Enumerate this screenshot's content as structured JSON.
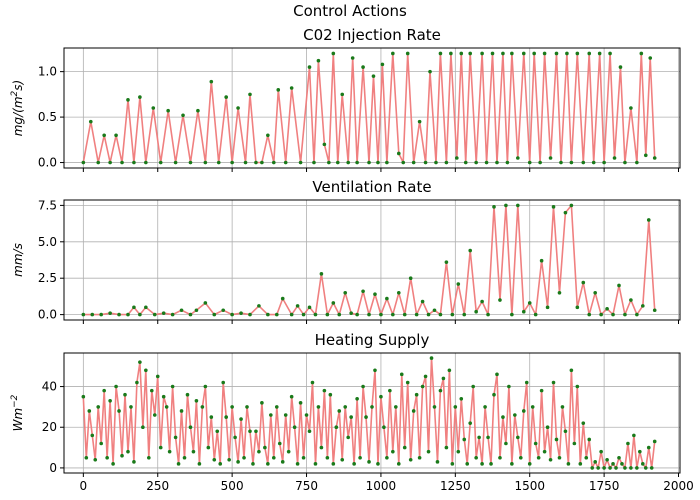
{
  "figure": {
    "suptitle": "Control Actions",
    "line_color": "#f08080",
    "marker_color": "#1a7a1a",
    "grid_color": "#b0b0b0"
  },
  "chart_data": [
    {
      "type": "line",
      "title": "C02 Injection Rate",
      "ylabel": "mg/(m²s)",
      "ylabel_tex": {
        "base": "mg/(m",
        "sup": "2",
        "end": "s)"
      },
      "xlim": [
        -65,
        2005
      ],
      "ylim": [
        -0.06,
        1.26
      ],
      "xticks": [
        0,
        250,
        500,
        750,
        1000,
        1250,
        1500,
        1750,
        2000
      ],
      "xticklabels": [],
      "yticks": [
        0.0,
        0.5,
        1.0
      ],
      "yticklabels": [
        "0.0",
        "0.5",
        "1.0"
      ],
      "grid": true,
      "series": [
        {
          "x": [
            0,
            25,
            50,
            70,
            90,
            110,
            130,
            150,
            170,
            190,
            210,
            235,
            260,
            285,
            310,
            335,
            360,
            385,
            410,
            430,
            455,
            480,
            500,
            520,
            545,
            560,
            580,
            600,
            620,
            640,
            655,
            680,
            700,
            730,
            760,
            775,
            790,
            810,
            825,
            840,
            855,
            870,
            890,
            905,
            920,
            940,
            960,
            975,
            990,
            1005,
            1020,
            1040,
            1060,
            1075,
            1090,
            1110,
            1130,
            1150,
            1165,
            1185,
            1200,
            1220,
            1235,
            1255,
            1270,
            1285,
            1300,
            1320,
            1340,
            1355,
            1375,
            1390,
            1410,
            1425,
            1440,
            1460,
            1480,
            1500,
            1515,
            1535,
            1550,
            1570,
            1590,
            1605,
            1625,
            1640,
            1660,
            1680,
            1700,
            1715,
            1735,
            1750,
            1770,
            1785,
            1805,
            1820,
            1840,
            1860,
            1875,
            1890,
            1905,
            1920
          ],
          "y": [
            0.0,
            0.45,
            0.0,
            0.3,
            0.0,
            0.3,
            0.0,
            0.69,
            0.0,
            0.72,
            0.0,
            0.6,
            0.0,
            0.57,
            0.0,
            0.52,
            0.0,
            0.57,
            0.0,
            0.89,
            0.0,
            0.72,
            0.0,
            0.6,
            0.0,
            0.75,
            0.0,
            0.0,
            0.3,
            0.0,
            0.8,
            0.0,
            0.82,
            0.0,
            1.05,
            0.0,
            1.12,
            0.2,
            0.0,
            1.2,
            0.0,
            0.75,
            0.0,
            1.15,
            0.0,
            1.05,
            0.0,
            0.95,
            0.0,
            1.08,
            0.0,
            1.2,
            0.1,
            0.0,
            1.2,
            0.0,
            0.45,
            0.0,
            1.0,
            0.0,
            1.2,
            0.0,
            1.2,
            0.05,
            1.2,
            0.0,
            1.2,
            0.0,
            1.2,
            0.0,
            1.2,
            0.0,
            1.2,
            0.0,
            1.2,
            0.05,
            1.2,
            0.0,
            1.2,
            0.0,
            1.2,
            0.05,
            1.2,
            0.0,
            1.2,
            0.0,
            1.2,
            0.0,
            1.2,
            0.0,
            1.2,
            0.0,
            1.2,
            0.05,
            1.05,
            0.0,
            0.6,
            0.0,
            1.2,
            0.08,
            1.15,
            0.05
          ]
        }
      ]
    },
    {
      "type": "line",
      "title": "Ventilation Rate",
      "ylabel": "mm/s",
      "xlim": [
        -65,
        2005
      ],
      "ylim": [
        -0.37,
        7.87
      ],
      "xticks": [
        0,
        250,
        500,
        750,
        1000,
        1250,
        1500,
        1750,
        2000
      ],
      "xticklabels": [],
      "yticks": [
        0.0,
        2.5,
        5.0,
        7.5
      ],
      "yticklabels": [
        "0.0",
        "2.5",
        "5.0",
        "7.5"
      ],
      "grid": true,
      "series": [
        {
          "x": [
            0,
            30,
            60,
            90,
            120,
            150,
            170,
            190,
            210,
            240,
            270,
            300,
            330,
            360,
            380,
            410,
            440,
            470,
            500,
            530,
            560,
            590,
            620,
            650,
            670,
            700,
            720,
            740,
            760,
            780,
            800,
            820,
            840,
            860,
            880,
            900,
            920,
            940,
            960,
            980,
            1000,
            1020,
            1040,
            1060,
            1080,
            1100,
            1120,
            1140,
            1160,
            1180,
            1200,
            1220,
            1240,
            1260,
            1280,
            1300,
            1320,
            1340,
            1360,
            1380,
            1400,
            1420,
            1440,
            1460,
            1480,
            1500,
            1520,
            1540,
            1560,
            1580,
            1600,
            1620,
            1640,
            1660,
            1680,
            1700,
            1720,
            1740,
            1760,
            1780,
            1800,
            1820,
            1840,
            1860,
            1880,
            1900,
            1920
          ],
          "y": [
            0.0,
            0.0,
            0.0,
            0.1,
            0.0,
            0.0,
            0.5,
            0.0,
            0.5,
            0.0,
            0.1,
            0.0,
            0.3,
            0.0,
            0.3,
            0.8,
            0.0,
            0.3,
            0.0,
            0.1,
            0.0,
            0.6,
            0.0,
            0.0,
            1.1,
            0.0,
            0.6,
            0.0,
            0.5,
            0.0,
            2.8,
            0.0,
            0.8,
            0.0,
            1.5,
            0.1,
            0.0,
            1.6,
            0.0,
            1.4,
            0.0,
            1.1,
            0.0,
            1.5,
            0.0,
            2.5,
            0.0,
            0.9,
            0.0,
            0.3,
            0.0,
            3.6,
            0.0,
            2.1,
            0.0,
            4.4,
            0.2,
            0.9,
            0.0,
            7.4,
            1.0,
            7.5,
            0.0,
            7.5,
            0.2,
            0.8,
            0.0,
            3.7,
            0.5,
            7.4,
            1.5,
            7.0,
            7.5,
            0.5,
            2.2,
            0.0,
            1.5,
            0.0,
            0.4,
            0.0,
            2.0,
            0.0,
            1.0,
            0.0,
            0.6,
            6.5,
            0.3
          ]
        }
      ]
    },
    {
      "type": "line",
      "title": "Heating Supply",
      "ylabel": "Wm⁻²",
      "ylabel_tex": {
        "base": "Wm",
        "sup": "−2",
        "end": ""
      },
      "xlim": [
        -65,
        2005
      ],
      "ylim": [
        -2.5,
        56.5
      ],
      "xticks": [
        0,
        250,
        500,
        750,
        1000,
        1250,
        1500,
        1750,
        2000
      ],
      "xticklabels": [
        "0",
        "250",
        "500",
        "750",
        "1000",
        "1250",
        "1500",
        "1750",
        "2000"
      ],
      "yticks": [
        0,
        20,
        40
      ],
      "yticklabels": [
        "0",
        "20",
        "40"
      ],
      "grid": true,
      "series": [
        {
          "x": [
            0,
            10,
            20,
            30,
            40,
            50,
            60,
            70,
            80,
            90,
            100,
            110,
            120,
            130,
            140,
            150,
            160,
            170,
            180,
            190,
            200,
            210,
            220,
            230,
            240,
            250,
            260,
            270,
            280,
            290,
            300,
            310,
            320,
            330,
            340,
            350,
            360,
            370,
            380,
            390,
            400,
            410,
            420,
            430,
            440,
            450,
            460,
            470,
            480,
            490,
            500,
            510,
            520,
            530,
            540,
            550,
            560,
            570,
            580,
            590,
            600,
            610,
            620,
            630,
            640,
            650,
            660,
            670,
            680,
            690,
            700,
            710,
            720,
            730,
            740,
            750,
            760,
            770,
            780,
            790,
            800,
            810,
            820,
            830,
            840,
            850,
            860,
            870,
            880,
            890,
            900,
            910,
            920,
            930,
            940,
            950,
            960,
            970,
            980,
            990,
            1000,
            1010,
            1020,
            1030,
            1040,
            1050,
            1060,
            1070,
            1080,
            1090,
            1100,
            1110,
            1120,
            1130,
            1140,
            1150,
            1160,
            1170,
            1180,
            1190,
            1200,
            1210,
            1220,
            1230,
            1240,
            1250,
            1260,
            1270,
            1280,
            1290,
            1300,
            1310,
            1320,
            1330,
            1340,
            1350,
            1360,
            1370,
            1380,
            1390,
            1400,
            1410,
            1420,
            1430,
            1440,
            1450,
            1460,
            1470,
            1480,
            1490,
            1500,
            1510,
            1520,
            1530,
            1540,
            1550,
            1560,
            1570,
            1580,
            1590,
            1600,
            1610,
            1620,
            1630,
            1640,
            1650,
            1660,
            1670,
            1680,
            1690,
            1700,
            1710,
            1720,
            1730,
            1740,
            1750,
            1760,
            1770,
            1780,
            1790,
            1800,
            1810,
            1820,
            1830,
            1840,
            1850,
            1860,
            1870,
            1880,
            1890,
            1900,
            1910,
            1920
          ],
          "y": [
            35,
            5,
            28,
            16,
            4,
            30,
            12,
            38,
            5,
            33,
            2,
            40,
            28,
            6,
            36,
            8,
            30,
            3,
            42,
            52,
            20,
            48,
            5,
            38,
            26,
            45,
            10,
            35,
            30,
            8,
            40,
            15,
            2,
            28,
            5,
            36,
            20,
            8,
            33,
            2,
            30,
            40,
            10,
            25,
            4,
            18,
            2,
            42,
            25,
            4,
            30,
            15,
            3,
            24,
            5,
            30,
            18,
            2,
            18,
            8,
            32,
            10,
            2,
            26,
            5,
            30,
            12,
            3,
            26,
            8,
            35,
            20,
            2,
            32,
            5,
            26,
            18,
            42,
            2,
            30,
            10,
            38,
            5,
            36,
            2,
            20,
            28,
            4,
            30,
            15,
            25,
            2,
            34,
            5,
            40,
            25,
            3,
            30,
            48,
            2,
            35,
            20,
            5,
            38,
            8,
            30,
            2,
            46,
            10,
            42,
            4,
            28,
            36,
            5,
            40,
            45,
            8,
            54,
            30,
            3,
            38,
            44,
            10,
            48,
            2,
            30,
            8,
            34,
            14,
            2,
            22,
            40,
            5,
            15,
            2,
            30,
            15,
            2,
            36,
            46,
            5,
            25,
            12,
            40,
            2,
            26,
            15,
            5,
            28,
            42,
            2,
            30,
            12,
            5,
            38,
            8,
            20,
            4,
            42,
            14,
            5,
            30,
            18,
            2,
            48,
            12,
            40,
            2,
            22,
            5,
            14,
            0,
            3,
            0,
            8,
            0,
            4,
            0,
            2,
            0,
            5,
            2,
            0,
            12,
            0,
            16,
            0,
            8,
            2,
            0,
            10,
            0,
            13
          ]
        }
      ]
    }
  ]
}
